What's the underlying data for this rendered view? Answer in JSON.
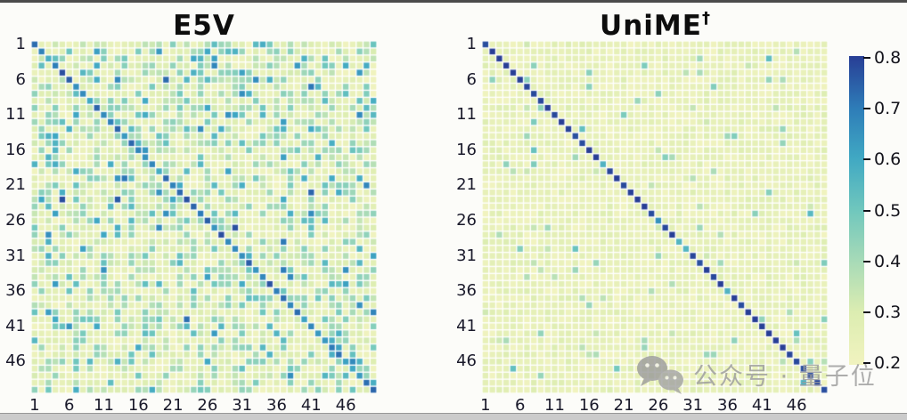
{
  "figure": {
    "background": "#fcfcf9",
    "top_border_color": "#4b4b4b",
    "bottom_border_color": "#cbcbcb"
  },
  "chart_data": [
    {
      "type": "heatmap",
      "title": "E5V",
      "title_superscript": "",
      "matrix_size": 50,
      "x_ticks": [
        "1",
        "6",
        "11",
        "16",
        "21",
        "26",
        "31",
        "36",
        "41",
        "46"
      ],
      "y_ticks": [
        "1",
        "6",
        "11",
        "16",
        "21",
        "26",
        "31",
        "36",
        "41",
        "46"
      ],
      "tick_start": 1,
      "tick_step": 5,
      "value_min": 0.2,
      "value_max": 0.8,
      "colormap": "YlGnBu",
      "description": "Similarity matrix with a moderately dark blue/teal diagonal (~0.6-0.78) and many scattered mid-value green/teal off-diagonal cells over a pale-yellow background (~0.2-0.3), plus rare navy outliers.",
      "pattern": {
        "seed": 1337,
        "base": [
          0.2,
          0.3
        ],
        "layers": [
          {
            "prob": 0.32,
            "min": 0.3,
            "max": 0.46
          },
          {
            "prob": 0.1,
            "min": 0.44,
            "max": 0.6
          },
          {
            "prob": 0.022,
            "min": 0.58,
            "max": 0.68
          },
          {
            "prob": 0.004,
            "min": 0.7,
            "max": 0.8
          }
        ],
        "diagonal": [
          {
            "prob": 0.45,
            "min": 0.58,
            "max": 0.68
          },
          {
            "prob": 1.0,
            "min": 0.66,
            "max": 0.78
          }
        ]
      }
    },
    {
      "type": "heatmap",
      "title": "UniME",
      "title_superscript": "†",
      "matrix_size": 50,
      "x_ticks": [
        "1",
        "6",
        "11",
        "16",
        "21",
        "26",
        "31",
        "36",
        "41",
        "46"
      ],
      "y_ticks": [
        "1",
        "6",
        "11",
        "16",
        "21",
        "26",
        "31",
        "36",
        "41",
        "46"
      ],
      "tick_start": 1,
      "tick_step": 5,
      "value_min": 0.2,
      "value_max": 0.8,
      "colormap": "YlGnBu",
      "description": "Similarity matrix with a crisp dark-navy diagonal (~0.8, a few teal diagonal cells ~0.55-0.65) over a nearly uniform pale-yellow background (~0.2-0.27) with sparse green specks.",
      "pattern": {
        "seed": 2025,
        "base": [
          0.2,
          0.27
        ],
        "layers": [
          {
            "prob": 0.28,
            "min": 0.24,
            "max": 0.3
          },
          {
            "prob": 0.035,
            "min": 0.32,
            "max": 0.48
          },
          {
            "prob": 0.005,
            "min": 0.48,
            "max": 0.58
          }
        ],
        "diagonal": [
          {
            "prob": 0.16,
            "min": 0.55,
            "max": 0.66
          },
          {
            "prob": 1.0,
            "min": 0.77,
            "max": 0.82
          }
        ]
      }
    }
  ],
  "colorbar": {
    "min": 0.2,
    "max": 0.8,
    "tick_labels": [
      "0.8",
      "0.7",
      "0.6",
      "0.5",
      "0.4",
      "0.3",
      "0.2"
    ],
    "stops": [
      [
        0.2,
        "#f1f3bf"
      ],
      [
        0.3,
        "#dcedb1"
      ],
      [
        0.4,
        "#a9dbb7"
      ],
      [
        0.5,
        "#70c7bd"
      ],
      [
        0.6,
        "#40a8c3"
      ],
      [
        0.7,
        "#2e7db8"
      ],
      [
        0.8,
        "#283e95"
      ]
    ]
  },
  "watermark": {
    "icon": "wechat-icon",
    "text": "公众号 · 量子位",
    "color": "#9c9c9c"
  }
}
